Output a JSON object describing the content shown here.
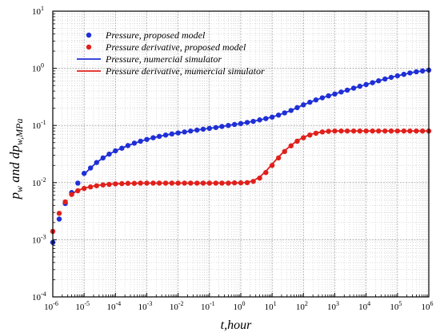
{
  "chart_data": {
    "type": "scatter",
    "xscale": "log",
    "yscale": "log",
    "xlim": [
      1e-06,
      1000000.0
    ],
    "ylim": [
      0.0001,
      10
    ],
    "grid": true,
    "legend_position": "top-left",
    "xlabel": "t,hour",
    "ylabel": "pw and dpw,MPa",
    "x_ticks": [
      {
        "base": "10",
        "exp": "-6"
      },
      {
        "base": "10",
        "exp": "-5"
      },
      {
        "base": "10",
        "exp": "-4"
      },
      {
        "base": "10",
        "exp": "-3"
      },
      {
        "base": "10",
        "exp": "-2"
      },
      {
        "base": "10",
        "exp": "-1"
      },
      {
        "base": "10",
        "exp": "0"
      },
      {
        "base": "10",
        "exp": "1"
      },
      {
        "base": "10",
        "exp": "2"
      },
      {
        "base": "10",
        "exp": "3"
      },
      {
        "base": "10",
        "exp": "4"
      },
      {
        "base": "10",
        "exp": "5"
      },
      {
        "base": "10",
        "exp": "6"
      }
    ],
    "y_ticks": [
      {
        "base": "10",
        "exp": "-4"
      },
      {
        "base": "10",
        "exp": "-3"
      },
      {
        "base": "10",
        "exp": "-2"
      },
      {
        "base": "10",
        "exp": "-1"
      },
      {
        "base": "10",
        "exp": "0"
      },
      {
        "base": "10",
        "exp": "1"
      }
    ],
    "series": [
      {
        "name": "Pressure, proposed model",
        "kind": "markers",
        "color": "#1f2fd6",
        "x": [
          1e-06,
          1.6e-06,
          2.5e-06,
          4e-06,
          6.3e-06,
          1e-05,
          1.6e-05,
          2.5e-05,
          4e-05,
          6.3e-05,
          0.0001,
          0.00016,
          0.00025,
          0.0004,
          0.00063,
          0.001,
          0.0016,
          0.0025,
          0.004,
          0.0063,
          0.01,
          0.016,
          0.025,
          0.04,
          0.063,
          0.1,
          0.16,
          0.25,
          0.4,
          0.63,
          1,
          1.6,
          2.5,
          4,
          6.3,
          10,
          16,
          25,
          40,
          63,
          100,
          160,
          250,
          400,
          630,
          1000,
          1600,
          2500,
          4000,
          6300,
          10000,
          16000,
          25000,
          40000,
          63000,
          100000,
          160000,
          250000,
          400000,
          630000,
          1000000
        ],
        "y": [
          0.0009,
          0.0023,
          0.0043,
          0.0067,
          0.0098,
          0.0145,
          0.018,
          0.0225,
          0.027,
          0.0315,
          0.036,
          0.04,
          0.0445,
          0.049,
          0.053,
          0.057,
          0.061,
          0.0645,
          0.068,
          0.071,
          0.074,
          0.077,
          0.08,
          0.083,
          0.086,
          0.089,
          0.092,
          0.096,
          0.1,
          0.104,
          0.108,
          0.113,
          0.118,
          0.125,
          0.132,
          0.14,
          0.152,
          0.166,
          0.183,
          0.205,
          0.23,
          0.255,
          0.28,
          0.305,
          0.33,
          0.355,
          0.385,
          0.415,
          0.45,
          0.485,
          0.52,
          0.56,
          0.605,
          0.65,
          0.695,
          0.74,
          0.785,
          0.83,
          0.87,
          0.9,
          0.93
        ]
      },
      {
        "name": "Pressure derivative, proposed model",
        "kind": "markers",
        "color": "#e0201b",
        "x": [
          1e-06,
          1.6e-06,
          2.5e-06,
          4e-06,
          6.3e-06,
          1e-05,
          1.6e-05,
          2.5e-05,
          4e-05,
          6.3e-05,
          0.0001,
          0.00016,
          0.00025,
          0.0004,
          0.00063,
          0.001,
          0.0016,
          0.0025,
          0.004,
          0.0063,
          0.01,
          0.016,
          0.025,
          0.04,
          0.063,
          0.1,
          0.16,
          0.25,
          0.4,
          0.63,
          1,
          1.6,
          2.5,
          4,
          6.3,
          10,
          16,
          25,
          40,
          63,
          100,
          160,
          250,
          400,
          630,
          1000,
          1600,
          2500,
          4000,
          6300,
          10000,
          16000,
          25000,
          40000,
          63000,
          100000,
          160000,
          250000,
          400000,
          630000,
          1000000
        ],
        "y": [
          0.0014,
          0.0029,
          0.0046,
          0.0062,
          0.0072,
          0.0079,
          0.0084,
          0.0088,
          0.0091,
          0.0093,
          0.0095,
          0.0096,
          0.0097,
          0.0097,
          0.0098,
          0.0098,
          0.0098,
          0.0098,
          0.0098,
          0.0098,
          0.0098,
          0.0098,
          0.0098,
          0.0098,
          0.0098,
          0.0098,
          0.0098,
          0.0098,
          0.0098,
          0.0099,
          0.0099,
          0.01,
          0.0105,
          0.012,
          0.015,
          0.02,
          0.027,
          0.035,
          0.044,
          0.053,
          0.061,
          0.068,
          0.073,
          0.077,
          0.079,
          0.08,
          0.08,
          0.08,
          0.08,
          0.08,
          0.08,
          0.08,
          0.08,
          0.08,
          0.08,
          0.08,
          0.08,
          0.08,
          0.08,
          0.08,
          0.08
        ]
      },
      {
        "name": "Pressure, numercial simulator",
        "kind": "line",
        "color": "#1f2fd6",
        "x": [
          1e-05,
          1.6e-05,
          2.5e-05,
          4e-05,
          6.3e-05,
          0.0001,
          0.00025,
          0.00063,
          0.0016,
          0.004,
          0.01,
          0.025,
          0.063,
          0.16,
          0.4,
          1,
          2.5,
          6.3,
          16,
          40,
          100,
          250,
          630,
          1600,
          4000,
          10000,
          25000,
          63000,
          160000,
          400000,
          1000000
        ],
        "y": [
          0.014,
          0.018,
          0.0225,
          0.027,
          0.0315,
          0.036,
          0.0445,
          0.053,
          0.061,
          0.068,
          0.074,
          0.08,
          0.086,
          0.092,
          0.1,
          0.108,
          0.118,
          0.132,
          0.152,
          0.183,
          0.23,
          0.28,
          0.33,
          0.385,
          0.45,
          0.52,
          0.605,
          0.695,
          0.785,
          0.87,
          0.93
        ]
      },
      {
        "name": "Pressure derivative, mumercial simulator",
        "kind": "line",
        "color": "#e0201b",
        "x": [
          4e-06,
          6.3e-06,
          1e-05,
          1.6e-05,
          2.5e-05,
          4e-05,
          6.3e-05,
          0.0001,
          0.00025,
          0.00063,
          0.0016,
          0.01,
          0.1,
          0.63,
          1,
          1.6,
          2.5,
          4,
          6.3,
          10,
          16,
          25,
          40,
          63,
          100,
          160,
          250,
          400,
          630,
          1000,
          10000,
          100000,
          1000000
        ],
        "y": [
          0.0063,
          0.0073,
          0.008,
          0.0085,
          0.0089,
          0.0092,
          0.0094,
          0.0095,
          0.0097,
          0.0098,
          0.0098,
          0.0098,
          0.0098,
          0.0099,
          0.0099,
          0.0101,
          0.0108,
          0.0125,
          0.0158,
          0.021,
          0.028,
          0.036,
          0.045,
          0.054,
          0.062,
          0.069,
          0.074,
          0.077,
          0.079,
          0.08,
          0.08,
          0.08,
          0.08
        ]
      }
    ]
  }
}
